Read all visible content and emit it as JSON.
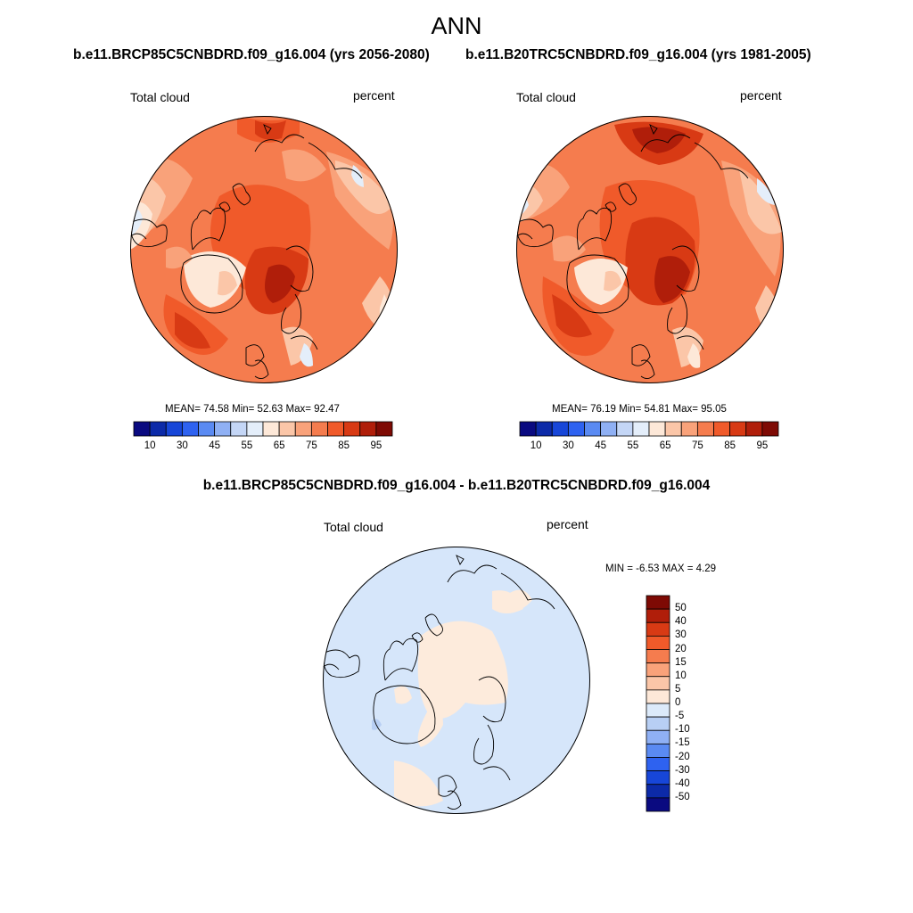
{
  "title": "ANN",
  "panels": [
    {
      "title": "b.e11.BRCP85C5CNBDRD.f09_g16.004 (yrs 2056-2080)",
      "variable": "Total cloud",
      "units": "percent",
      "stats": "MEAN=  74.58  Min=  52.63  Max=  92.47"
    },
    {
      "title": "b.e11.B20TRC5CNBDRD.f09_g16.004 (yrs 1981-2005)",
      "variable": "Total cloud",
      "units": "percent",
      "stats": "MEAN=  76.19  Min=  54.81  Max=  95.05"
    },
    {
      "title": "b.e11.BRCP85C5CNBDRD.f09_g16.004 - b.e11.B20TRC5CNBDRD.f09_g16.004",
      "variable": "Total cloud",
      "units": "percent",
      "stats": "MIN =  -6.53 MAX =   4.29"
    }
  ],
  "colorbar_abs": {
    "tick_labels": [
      "10",
      "30",
      "45",
      "55",
      "65",
      "75",
      "85",
      "95"
    ],
    "colors": [
      "#0a0a80",
      "#0c2aa8",
      "#1746d8",
      "#2e62f0",
      "#5a8af2",
      "#8fb0f4",
      "#c4d6f6",
      "#e4eefa",
      "#fde8d8",
      "#fbc6a8",
      "#f9a27a",
      "#f57c4e",
      "#f05a2a",
      "#d83a14",
      "#b01e0a",
      "#7e0a04"
    ]
  },
  "colorbar_diff": {
    "tick_labels": [
      "50",
      "40",
      "30",
      "20",
      "15",
      "10",
      "5",
      "0",
      "-5",
      "-10",
      "-15",
      "-20",
      "-30",
      "-40",
      "-50"
    ],
    "colors": [
      "#7e0a04",
      "#b01e0a",
      "#d83a14",
      "#f05a2a",
      "#f57c4e",
      "#f9a27a",
      "#fbc6a8",
      "#fde8d8",
      "#dceafa",
      "#b8cff4",
      "#8fb0f4",
      "#5a8af2",
      "#2e62f0",
      "#1746d8",
      "#0c2aa8",
      "#0a0a80"
    ]
  },
  "map_colors": {
    "c95": "#7e0a04",
    "c90": "#b01e0a",
    "c85": "#d83a14",
    "c80": "#f05a2a",
    "c75": "#f57c4e",
    "c70": "#f9a27a",
    "c65": "#fbc6a8",
    "c60": "#fde8d8",
    "c55": "#e4eefa",
    "c50": "#c4d6f6",
    "diff_neg": "#d6e6fa",
    "diff_pos": "#fdebdc",
    "diff_neg2": "#b8cff4"
  }
}
